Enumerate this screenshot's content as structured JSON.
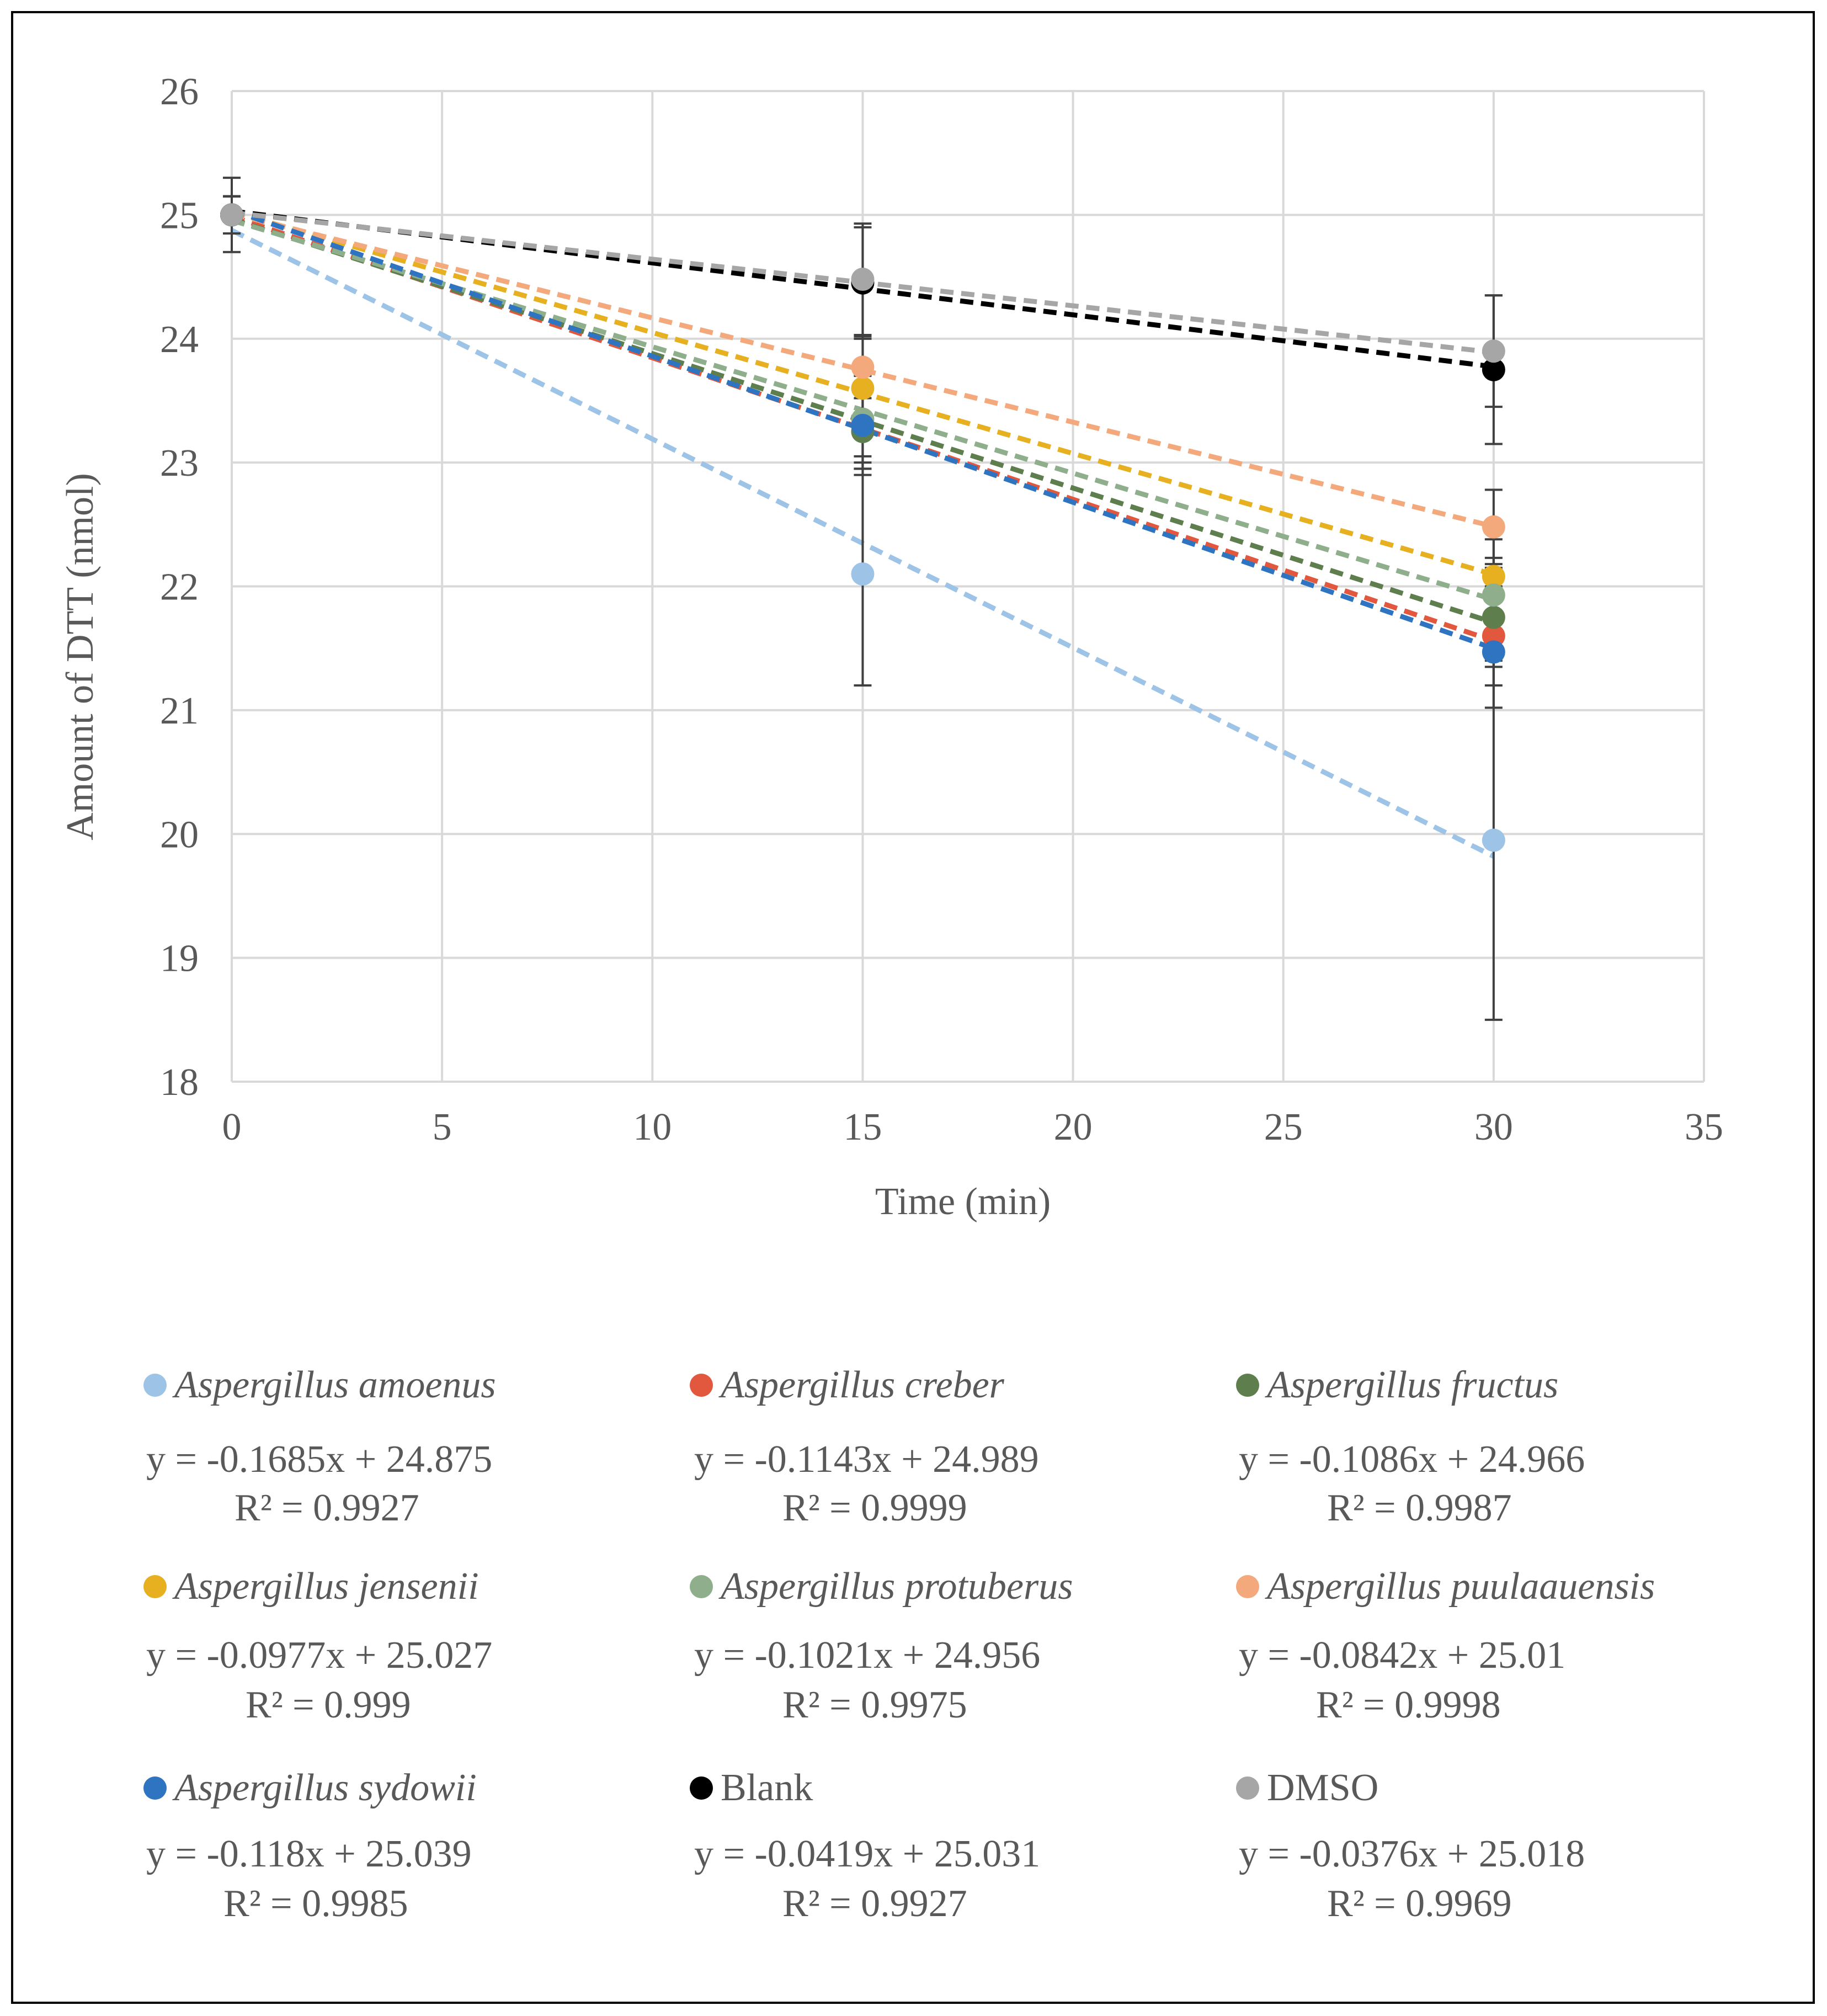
{
  "chart_data": {
    "type": "scatter",
    "xlabel": "Time (min)",
    "ylabel": "Amount of DTT (nmol)",
    "xlim": [
      0,
      35
    ],
    "ylim": [
      18,
      26
    ],
    "x_ticks": [
      "0",
      "5",
      "10",
      "15",
      "20",
      "25",
      "30",
      "35"
    ],
    "y_ticks": [
      "18",
      "19",
      "20",
      "21",
      "22",
      "23",
      "24",
      "25",
      "26"
    ],
    "grid": true,
    "x": [
      0,
      15,
      30
    ],
    "series": [
      {
        "name": "Aspergillus amoenus",
        "italic": true,
        "color": "#9DC3E6",
        "values": [
          25.0,
          22.1,
          19.95
        ],
        "error": [
          0.15,
          0.9,
          1.45
        ],
        "slope": -0.1685,
        "intercept": 24.875,
        "equation": "y = -0.1685x + 24.875",
        "r2": "R² = 0.9927"
      },
      {
        "name": "Aspergillus creber",
        "italic": true,
        "color": "#E2583E",
        "values": [
          25.0,
          23.3,
          21.6
        ],
        "error": [
          0.15,
          0.4,
          0.4
        ],
        "slope": -0.1143,
        "intercept": 24.989,
        "equation": "y = -0.1143x + 24.989",
        "r2": "R² = 0.9999"
      },
      {
        "name": "Aspergillus fructus",
        "italic": true,
        "color": "#5E7E4E",
        "values": [
          25.0,
          23.25,
          21.75
        ],
        "error": [
          0.15,
          0.3,
          0.4
        ],
        "slope": -0.1086,
        "intercept": 24.966,
        "equation": "y = -0.1086x + 24.966",
        "r2": "R² = 0.9987"
      },
      {
        "name": "Aspergillus jensenii",
        "italic": true,
        "color": "#E6B020",
        "values": [
          25.0,
          23.6,
          22.08
        ],
        "error": [
          0.15,
          0.4,
          0.3
        ],
        "slope": -0.0977,
        "intercept": 25.027,
        "equation": "y = -0.0977x + 25.027",
        "r2": "R² = 0.999"
      },
      {
        "name": "Aspergillus protuberus",
        "italic": true,
        "color": "#8FAE8C",
        "values": [
          25.0,
          23.35,
          21.93
        ],
        "error": [
          0.15,
          0.3,
          0.3
        ],
        "slope": -0.1021,
        "intercept": 24.956,
        "equation": "y = -0.1021x + 24.956",
        "r2": "R² = 0.9975"
      },
      {
        "name": "Aspergillus puulaauensis",
        "italic": true,
        "color": "#F4A97C",
        "values": [
          25.0,
          23.77,
          22.48
        ],
        "error": [
          0.15,
          0.25,
          0.3
        ],
        "slope": -0.0842,
        "intercept": 25.01,
        "equation": "y = -0.0842x + 25.01",
        "r2": "R² = 0.9998"
      },
      {
        "name": "Aspergillus sydowii",
        "italic": true,
        "color": "#2E74C0",
        "values": [
          25.0,
          23.3,
          21.47
        ],
        "error": [
          0.15,
          0.35,
          0.45
        ],
        "slope": -0.118,
        "intercept": 25.039,
        "equation": "y = -0.118x + 25.039",
        "r2": "R² = 0.9985"
      },
      {
        "name": "Blank",
        "italic": false,
        "color": "#000000",
        "values": [
          25.0,
          24.45,
          23.75
        ],
        "error": [
          0.15,
          0.45,
          0.6
        ],
        "slope": -0.0419,
        "intercept": 25.031,
        "equation": "y = -0.0419x + 25.031",
        "r2": "R² = 0.9927"
      },
      {
        "name": "DMSO",
        "italic": false,
        "color": "#A6A6A6",
        "values": [
          25.0,
          24.48,
          23.9
        ],
        "error": [
          0.3,
          0.45,
          0.45
        ],
        "slope": -0.0376,
        "intercept": 25.018,
        "equation": "y = -0.0376x + 25.018",
        "r2": "R² = 0.9969"
      }
    ]
  }
}
